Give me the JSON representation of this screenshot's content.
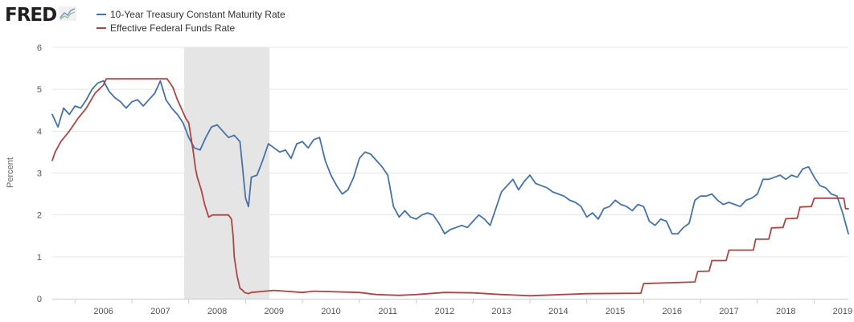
{
  "header": {
    "logo_text": "FRED",
    "logo_icon": "line-chart-icon"
  },
  "colors": {
    "treasury": "#4572a7",
    "fedfunds": "#aa4643",
    "recession": "#e5e5e5",
    "grid": "#e6e6e6",
    "axis": "#cccccc"
  },
  "chart_data": {
    "type": "line",
    "title": "",
    "xlabel": "",
    "ylabel": "Percent",
    "xlim": [
      2005.6,
      2019.6
    ],
    "ylim": [
      0,
      6
    ],
    "yticks": [
      "0",
      "1",
      "2",
      "3",
      "4",
      "5",
      "6"
    ],
    "xticks": [
      "2006",
      "2007",
      "2008",
      "2009",
      "2010",
      "2011",
      "2012",
      "2013",
      "2014",
      "2015",
      "2016",
      "2017",
      "2018",
      "2019"
    ],
    "grid": true,
    "legend_position": "top-left",
    "recessions": [
      {
        "start": 2007.92,
        "end": 2009.42
      }
    ],
    "series": [
      {
        "name": "10-Year Treasury Constant Maturity Rate",
        "x": [
          2005.6,
          2005.7,
          2005.8,
          2005.9,
          2006.0,
          2006.1,
          2006.2,
          2006.3,
          2006.4,
          2006.5,
          2006.6,
          2006.7,
          2006.8,
          2006.9,
          2007.0,
          2007.1,
          2007.2,
          2007.3,
          2007.4,
          2007.5,
          2007.6,
          2007.7,
          2007.8,
          2007.9,
          2008.0,
          2008.1,
          2008.2,
          2008.3,
          2008.4,
          2008.5,
          2008.6,
          2008.7,
          2008.8,
          2008.9,
          2009.0,
          2009.05,
          2009.1,
          2009.2,
          2009.3,
          2009.4,
          2009.5,
          2009.6,
          2009.7,
          2009.8,
          2009.9,
          2010.0,
          2010.1,
          2010.2,
          2010.3,
          2010.4,
          2010.5,
          2010.6,
          2010.7,
          2010.8,
          2010.9,
          2011.0,
          2011.1,
          2011.2,
          2011.3,
          2011.4,
          2011.5,
          2011.6,
          2011.7,
          2011.8,
          2011.9,
          2012.0,
          2012.1,
          2012.2,
          2012.3,
          2012.4,
          2012.5,
          2012.6,
          2012.7,
          2012.8,
          2012.9,
          2013.0,
          2013.1,
          2013.2,
          2013.3,
          2013.4,
          2013.5,
          2013.6,
          2013.7,
          2013.8,
          2013.9,
          2014.0,
          2014.1,
          2014.2,
          2014.3,
          2014.4,
          2014.5,
          2014.6,
          2014.7,
          2014.8,
          2014.9,
          2015.0,
          2015.1,
          2015.2,
          2015.3,
          2015.4,
          2015.5,
          2015.6,
          2015.7,
          2015.8,
          2015.9,
          2016.0,
          2016.1,
          2016.2,
          2016.3,
          2016.4,
          2016.5,
          2016.6,
          2016.7,
          2016.8,
          2016.9,
          2017.0,
          2017.1,
          2017.2,
          2017.3,
          2017.4,
          2017.5,
          2017.6,
          2017.7,
          2017.8,
          2017.9,
          2018.0,
          2018.1,
          2018.2,
          2018.3,
          2018.4,
          2018.5,
          2018.6,
          2018.7,
          2018.8,
          2018.9,
          2019.0,
          2019.1,
          2019.2,
          2019.3,
          2019.4,
          2019.5,
          2019.6
        ],
        "values": [
          4.4,
          4.1,
          4.55,
          4.4,
          4.6,
          4.55,
          4.75,
          5.0,
          5.15,
          5.2,
          4.95,
          4.8,
          4.7,
          4.55,
          4.7,
          4.75,
          4.6,
          4.75,
          4.9,
          5.2,
          4.75,
          4.55,
          4.4,
          4.2,
          3.85,
          3.6,
          3.55,
          3.85,
          4.1,
          4.15,
          4.0,
          3.85,
          3.9,
          3.75,
          2.4,
          2.2,
          2.9,
          2.95,
          3.3,
          3.7,
          3.6,
          3.5,
          3.55,
          3.35,
          3.7,
          3.75,
          3.6,
          3.8,
          3.85,
          3.3,
          2.95,
          2.7,
          2.5,
          2.6,
          2.9,
          3.35,
          3.5,
          3.45,
          3.3,
          3.15,
          2.95,
          2.2,
          1.95,
          2.1,
          1.95,
          1.9,
          2.0,
          2.05,
          2.0,
          1.8,
          1.55,
          1.65,
          1.7,
          1.75,
          1.7,
          1.85,
          2.0,
          1.9,
          1.75,
          2.15,
          2.55,
          2.7,
          2.85,
          2.6,
          2.8,
          2.95,
          2.75,
          2.7,
          2.65,
          2.55,
          2.5,
          2.45,
          2.35,
          2.3,
          2.2,
          1.95,
          2.05,
          1.9,
          2.15,
          2.2,
          2.35,
          2.25,
          2.2,
          2.1,
          2.25,
          2.2,
          1.85,
          1.75,
          1.9,
          1.85,
          1.55,
          1.55,
          1.7,
          1.8,
          2.35,
          2.45,
          2.45,
          2.5,
          2.35,
          2.25,
          2.3,
          2.25,
          2.2,
          2.35,
          2.4,
          2.5,
          2.85,
          2.85,
          2.9,
          2.95,
          2.85,
          2.95,
          2.9,
          3.1,
          3.15,
          2.9,
          2.7,
          2.65,
          2.5,
          2.45,
          2.05,
          1.55
        ]
      },
      {
        "name": "Effective Federal Funds Rate",
        "x": [
          2005.6,
          2005.65,
          2005.75,
          2005.9,
          2006.05,
          2006.2,
          2006.35,
          2006.5,
          2006.55,
          2007.62,
          2007.72,
          2007.8,
          2007.95,
          2008.0,
          2008.08,
          2008.12,
          2008.15,
          2008.22,
          2008.28,
          2008.35,
          2008.42,
          2008.7,
          2008.75,
          2008.78,
          2008.8,
          2008.85,
          2008.9,
          2008.95,
          2008.98,
          2009.05,
          2009.1,
          2009.5,
          2010.0,
          2010.2,
          2011.0,
          2011.3,
          2011.7,
          2012.0,
          2012.5,
          2013.0,
          2013.5,
          2014.0,
          2015.0,
          2015.95,
          2016.0,
          2016.9,
          2016.95,
          2017.15,
          2017.2,
          2017.45,
          2017.5,
          2017.93,
          2017.97,
          2018.2,
          2018.25,
          2018.45,
          2018.5,
          2018.7,
          2018.75,
          2018.95,
          2019.0,
          2019.52,
          2019.55,
          2019.6
        ],
        "values": [
          3.3,
          3.5,
          3.75,
          4.0,
          4.3,
          4.55,
          4.9,
          5.1,
          5.25,
          5.25,
          5.05,
          4.75,
          4.3,
          4.2,
          3.5,
          3.1,
          2.9,
          2.6,
          2.25,
          1.95,
          2.0,
          2.0,
          1.9,
          1.5,
          1.0,
          0.55,
          0.25,
          0.2,
          0.15,
          0.12,
          0.15,
          0.2,
          0.15,
          0.18,
          0.15,
          0.1,
          0.08,
          0.1,
          0.15,
          0.14,
          0.1,
          0.07,
          0.12,
          0.13,
          0.36,
          0.4,
          0.65,
          0.66,
          0.91,
          0.91,
          1.16,
          1.16,
          1.42,
          1.42,
          1.69,
          1.7,
          1.91,
          1.92,
          2.19,
          2.2,
          2.4,
          2.4,
          2.15,
          2.15
        ]
      }
    ]
  }
}
